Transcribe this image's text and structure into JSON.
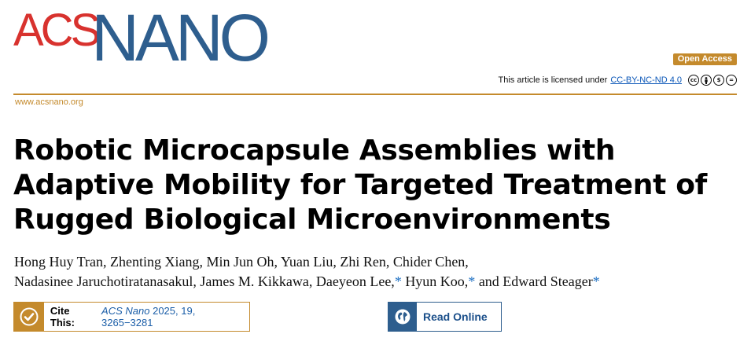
{
  "journal": {
    "logo_acs": "ACS",
    "logo_nano": "NANO",
    "site_url": "www.acsnano.org"
  },
  "access": {
    "badge": "Open Access",
    "license_prefix": "This article is licensed under",
    "license_link": "CC-BY-NC-ND 4.0",
    "license_icons": [
      "cc-icon",
      "by-icon",
      "nc-icon",
      "nd-icon"
    ]
  },
  "article": {
    "title": "Robotic Microcapsule Assemblies with Adaptive Mobility for Targeted Treatment of Rugged Biological Microenvironments",
    "authors_line1": "Hong Huy Tran, Zhenting Xiang, Min Jun Oh, Yuan Liu, Zhi Ren, Chider Chen,",
    "authors_line2_a": "Nadasinee Jaruchotiratanasakul, James M. Kikkawa, Daeyeon Lee,",
    "authors_line2_b": " Hyun Koo,",
    "authors_line2_c": " and Edward Steager",
    "corresponding_mark": "*"
  },
  "cite": {
    "label": "Cite This:",
    "journal": "ACS Nano",
    "details": "2025, 19, 3265−3281"
  },
  "read_online": {
    "label": "Read Online"
  },
  "colors": {
    "acs_red": "#d8322e",
    "nano_blue": "#2e5e8e",
    "gold": "#c48a2c",
    "link_blue": "#1b5ea8"
  }
}
